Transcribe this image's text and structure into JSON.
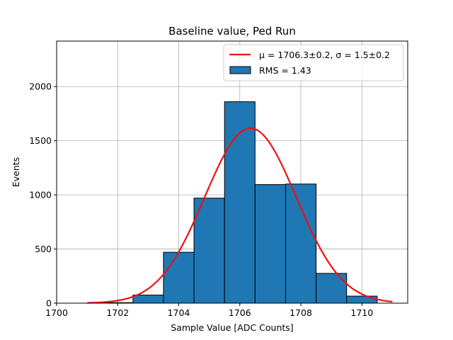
{
  "chart_data": {
    "type": "bar",
    "title": "Baseline value, Ped Run",
    "xlabel": "Sample Value [ADC Counts]",
    "ylabel": "Events",
    "xlim": [
      1700,
      1711.5
    ],
    "ylim": [
      0,
      2420
    ],
    "xticks": [
      1700,
      1702,
      1704,
      1706,
      1708,
      1710
    ],
    "xtick_labels": [
      "1700",
      "1702",
      "1704",
      "1706",
      "1708",
      "1710"
    ],
    "yticks": [
      0,
      500,
      1000,
      1500,
      2000
    ],
    "ytick_labels": [
      "0",
      "500",
      "1000",
      "1500",
      "2000"
    ],
    "grid": true,
    "legend_position": "top-right",
    "bins": [
      {
        "x0": 1700.5,
        "x1": 1701.5,
        "value": 0
      },
      {
        "x0": 1701.5,
        "x1": 1702.5,
        "value": 5
      },
      {
        "x0": 1702.5,
        "x1": 1703.5,
        "value": 75
      },
      {
        "x0": 1703.5,
        "x1": 1704.5,
        "value": 470
      },
      {
        "x0": 1704.5,
        "x1": 1705.5,
        "value": 970
      },
      {
        "x0": 1705.5,
        "x1": 1706.5,
        "value": 1860
      },
      {
        "x0": 1706.5,
        "x1": 1707.5,
        "value": 1095
      },
      {
        "x0": 1707.5,
        "x1": 1708.5,
        "value": 1100
      },
      {
        "x0": 1708.5,
        "x1": 1709.5,
        "value": 275
      },
      {
        "x0": 1709.5,
        "x1": 1710.5,
        "value": 65
      }
    ],
    "fit": {
      "mu": 1706.35,
      "sigma": 1.5,
      "amplitude": 1615,
      "x_range": [
        1701,
        1711
      ]
    },
    "series": [
      {
        "name": "μ = 1706.3±0.2, σ = 1.5±0.2",
        "type": "line",
        "color": "#ee1111"
      },
      {
        "name": "RMS = 1.43",
        "type": "bar",
        "color": "#1f77b4"
      }
    ]
  }
}
